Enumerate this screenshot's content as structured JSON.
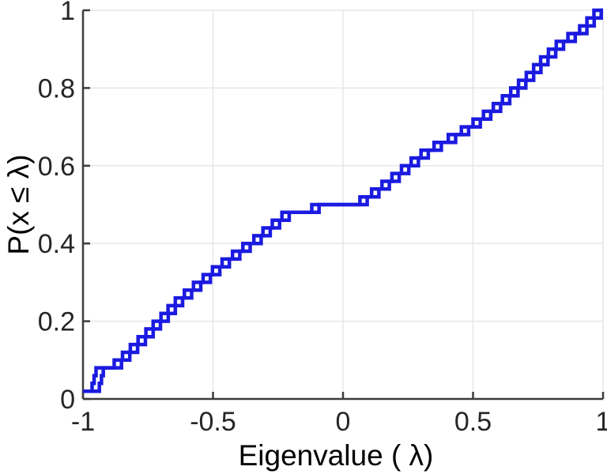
{
  "chart_data": {
    "type": "line",
    "subtype": "empirical-cdf-staircase",
    "title": "",
    "xlabel": "Eigenvalue ( λ)",
    "ylabel": "P(x ≤ λ)",
    "xlim": [
      -1,
      1
    ],
    "ylim": [
      0,
      1
    ],
    "x_ticks": [
      -1,
      -0.5,
      0,
      0.5,
      1
    ],
    "x_tick_labels": [
      "-1",
      "-0.5",
      "0",
      "0.5",
      "1"
    ],
    "y_ticks": [
      0,
      0.2,
      0.4,
      0.6,
      0.8,
      1
    ],
    "y_tick_labels": [
      "0",
      "0.2",
      "0.4",
      "0.6",
      "0.8",
      "1"
    ],
    "grid": true,
    "legend": "none",
    "p_step": 0.02,
    "p_start": 0.02,
    "eigenvalues": [
      -1.0,
      -0.965,
      -0.957,
      -0.95,
      -0.88,
      -0.848,
      -0.818,
      -0.788,
      -0.758,
      -0.73,
      -0.7,
      -0.673,
      -0.645,
      -0.61,
      -0.575,
      -0.538,
      -0.502,
      -0.465,
      -0.425,
      -0.385,
      -0.343,
      -0.308,
      -0.272,
      -0.235,
      -0.12,
      0.065,
      0.11,
      0.15,
      0.188,
      0.225,
      0.262,
      0.3,
      0.35,
      0.405,
      0.455,
      0.5,
      0.54,
      0.578,
      0.613,
      0.645,
      0.675,
      0.705,
      0.733,
      0.76,
      0.79,
      0.82,
      0.865,
      0.91,
      0.938,
      0.965
    ],
    "series": [
      {
        "name": "ecdf-primary",
        "x_offset": 0.0
      },
      {
        "name": "ecdf-secondary",
        "x_offset": 0.028
      }
    ],
    "colors": {
      "line": "#1a1ae0",
      "axis": "#3c3c3c",
      "grid": "#e7e7e7",
      "tick_text": "#262626"
    }
  }
}
